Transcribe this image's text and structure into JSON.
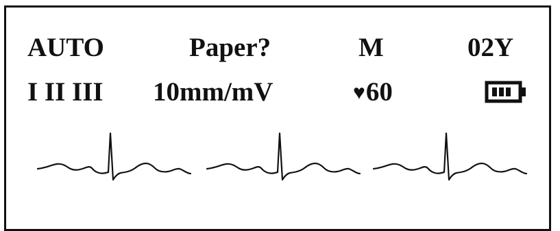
{
  "header": {
    "mode": "AUTO",
    "paper_status": "Paper?",
    "gender": "M",
    "age": "02Y"
  },
  "second_row": {
    "leads": "I II III",
    "gain": "10mm/mV",
    "heart_rate": "60"
  },
  "icons": {
    "heart": "heart-icon",
    "battery": "battery-icon",
    "battery_level": 0.75
  },
  "waveform": {
    "lead_count": 3,
    "stroke_color": "#111111"
  }
}
